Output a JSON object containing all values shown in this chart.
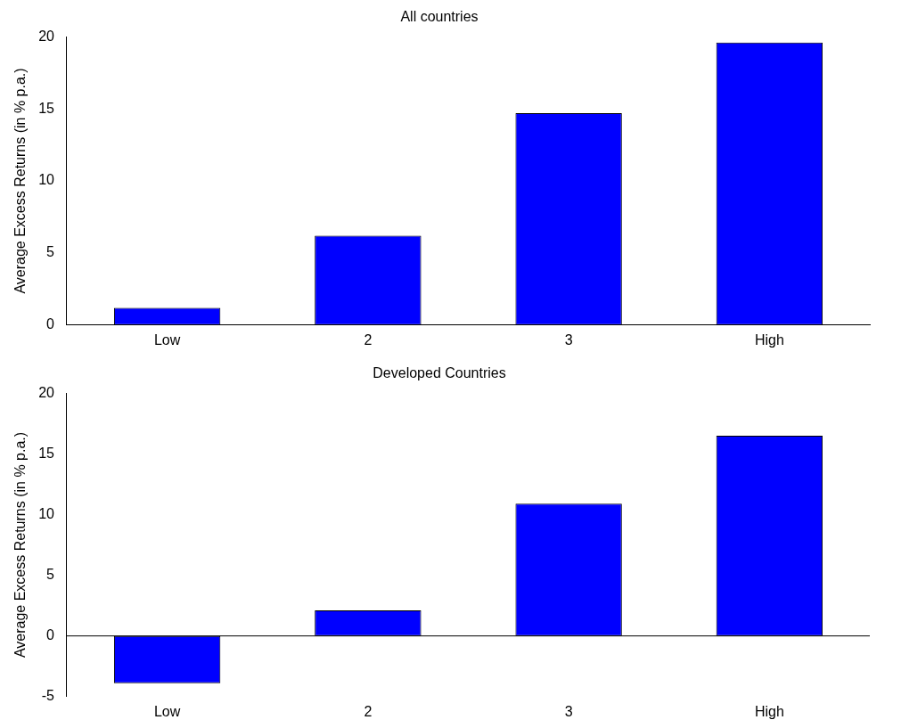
{
  "chart_data": [
    {
      "type": "bar",
      "title": "All countries",
      "ylabel": "Average Excess Returns (in % p.a.)",
      "categories": [
        "Low",
        "2",
        "3",
        "High"
      ],
      "series": [
        {
          "color": "#0000ff",
          "values": [
            1.2,
            6.2,
            14.7,
            19.6
          ]
        }
      ],
      "ylim": [
        0,
        20
      ],
      "yticks": [
        0,
        5,
        10,
        15,
        20
      ],
      "grid": false,
      "legend": false
    },
    {
      "type": "bar",
      "title": "Developed Countries",
      "ylabel": "Average Excess Returns (in % p.a.)",
      "categories": [
        "Low",
        "2",
        "3",
        "High"
      ],
      "series": [
        {
          "color": "#0000ff",
          "values": [
            -3.9,
            2.1,
            10.9,
            16.5
          ]
        }
      ],
      "ylim": [
        -5,
        20
      ],
      "yticks": [
        -5,
        0,
        5,
        10,
        15,
        20
      ],
      "grid": false,
      "legend": false,
      "ref_lines": [
        {
          "axis": "y",
          "value": 0,
          "color": "#000000",
          "line_style": "solid"
        }
      ]
    }
  ]
}
